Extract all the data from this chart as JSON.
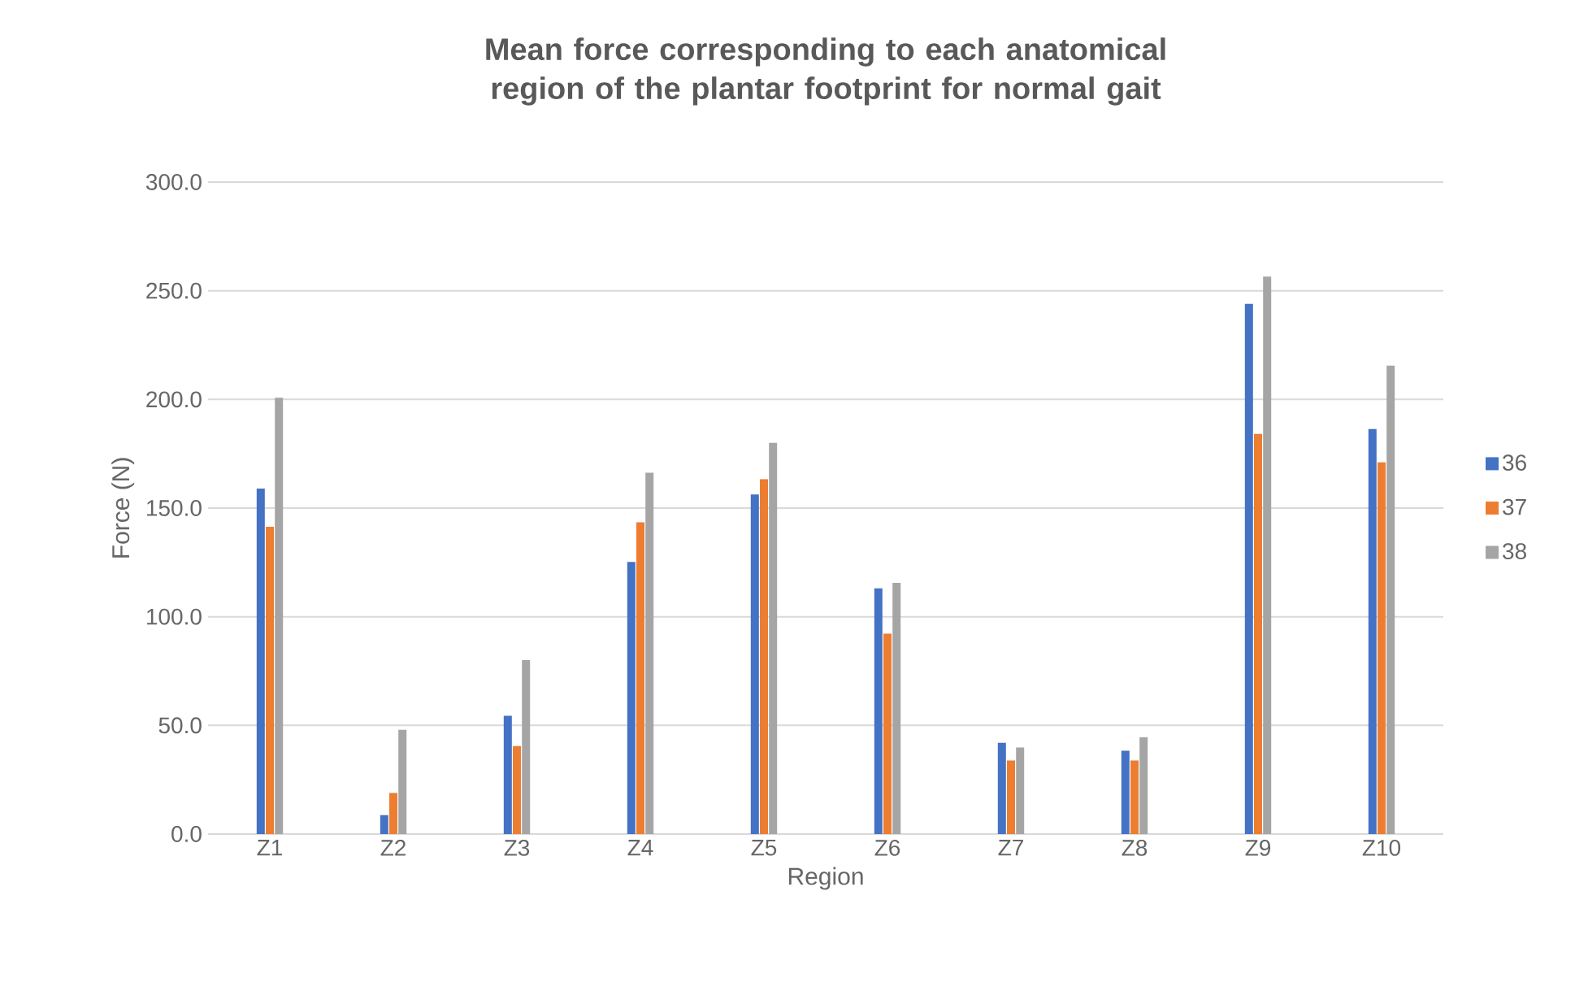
{
  "chart_data": {
    "type": "bar",
    "title": "Mean force corresponding to each anatomical region of the plantar footprint for normal gait",
    "xlabel": "Region",
    "ylabel": "Force (N)",
    "categories": [
      "Z1",
      "Z2",
      "Z3",
      "Z4",
      "Z5",
      "Z6",
      "Z7",
      "Z8",
      "Z9",
      "Z10"
    ],
    "series": [
      {
        "name": "36",
        "color": "#4472c4",
        "values": [
          159,
          8.7,
          54.4,
          125.2,
          156.3,
          113.1,
          42,
          38.3,
          244,
          186.4
        ]
      },
      {
        "name": "37",
        "color": "#ed7d31",
        "values": [
          141.4,
          18.9,
          40.5,
          143.4,
          163.3,
          92.2,
          33.8,
          33.8,
          184.1,
          171
        ]
      },
      {
        "name": "38",
        "color": "#a5a5a5",
        "values": [
          200.8,
          48,
          80,
          166.3,
          180,
          115.6,
          39.8,
          44.5,
          256.5,
          215.5
        ]
      }
    ],
    "ylim": [
      0,
      300
    ],
    "yticks": [
      {
        "value": 0,
        "label": "0.0"
      },
      {
        "value": 50,
        "label": "50.0"
      },
      {
        "value": 100,
        "label": "100.0"
      },
      {
        "value": 150,
        "label": "150.0"
      },
      {
        "value": 200,
        "label": "200.0"
      },
      {
        "value": 250,
        "label": "250.0"
      },
      {
        "value": 300,
        "label": "300.0"
      }
    ],
    "grid": "y",
    "legend": "right"
  }
}
